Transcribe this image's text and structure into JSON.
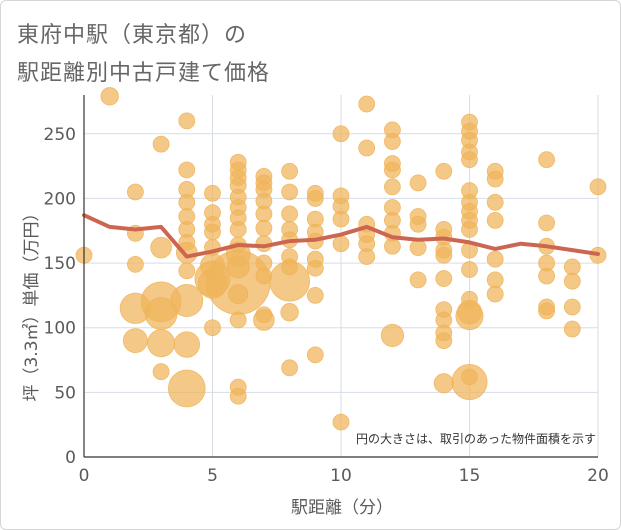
{
  "title_line1": "東府中駅（東京都）の",
  "title_line2": "駅距離別中古戸建て価格",
  "colors": {
    "bubble": "#f0b45a",
    "line": "#cd6650",
    "grid": "#d6dde5",
    "axis_text": "#5a5a5a"
  },
  "chart_data": {
    "type": "scatter",
    "xlabel": "駅距離（分）",
    "ylabel": "坪（3.3㎡）単価（万円）",
    "xlim": [
      0,
      20
    ],
    "ylim": [
      0,
      280
    ],
    "x_ticks": [
      "0",
      "5",
      "10",
      "15",
      "20"
    ],
    "y_ticks": [
      "0",
      "50",
      "100",
      "150",
      "200",
      "250"
    ],
    "grid": true,
    "annotation": "円の大きさは、取引のあった物件面積を示す",
    "bubbles": [
      {
        "x": 0,
        "y": 156,
        "s": 1
      },
      {
        "x": 1,
        "y": 279,
        "s": 1.1
      },
      {
        "x": 2,
        "y": 205,
        "s": 1
      },
      {
        "x": 2,
        "y": 173,
        "s": 1
      },
      {
        "x": 2,
        "y": 149,
        "s": 1
      },
      {
        "x": 2,
        "y": 115,
        "s": 1.9
      },
      {
        "x": 2,
        "y": 90,
        "s": 1.5
      },
      {
        "x": 3,
        "y": 242,
        "s": 1
      },
      {
        "x": 3,
        "y": 162,
        "s": 1.3
      },
      {
        "x": 3,
        "y": 120,
        "s": 2.5
      },
      {
        "x": 3,
        "y": 111,
        "s": 2
      },
      {
        "x": 3,
        "y": 88,
        "s": 1.7
      },
      {
        "x": 3,
        "y": 66,
        "s": 1
      },
      {
        "x": 4,
        "y": 260,
        "s": 1
      },
      {
        "x": 4,
        "y": 222,
        "s": 1
      },
      {
        "x": 4,
        "y": 207,
        "s": 1
      },
      {
        "x": 4,
        "y": 197,
        "s": 1
      },
      {
        "x": 4,
        "y": 186,
        "s": 1
      },
      {
        "x": 4,
        "y": 176,
        "s": 1
      },
      {
        "x": 4,
        "y": 166,
        "s": 1
      },
      {
        "x": 4,
        "y": 158,
        "s": 1.3
      },
      {
        "x": 4,
        "y": 144,
        "s": 1
      },
      {
        "x": 4,
        "y": 121,
        "s": 2
      },
      {
        "x": 4,
        "y": 87,
        "s": 1.6
      },
      {
        "x": 4,
        "y": 53,
        "s": 2.3
      },
      {
        "x": 5,
        "y": 204,
        "s": 1
      },
      {
        "x": 5,
        "y": 189,
        "s": 1
      },
      {
        "x": 5,
        "y": 180,
        "s": 1
      },
      {
        "x": 5,
        "y": 174,
        "s": 1
      },
      {
        "x": 5,
        "y": 162,
        "s": 1
      },
      {
        "x": 5,
        "y": 148,
        "s": 1.5
      },
      {
        "x": 5,
        "y": 138,
        "s": 2.2
      },
      {
        "x": 5,
        "y": 134,
        "s": 1.8
      },
      {
        "x": 5,
        "y": 100,
        "s": 1
      },
      {
        "x": 6,
        "y": 228,
        "s": 1
      },
      {
        "x": 6,
        "y": 222,
        "s": 1
      },
      {
        "x": 6,
        "y": 216,
        "s": 1
      },
      {
        "x": 6,
        "y": 210,
        "s": 1
      },
      {
        "x": 6,
        "y": 201,
        "s": 1
      },
      {
        "x": 6,
        "y": 193,
        "s": 1
      },
      {
        "x": 6,
        "y": 185,
        "s": 1
      },
      {
        "x": 6,
        "y": 176,
        "s": 1
      },
      {
        "x": 6,
        "y": 164,
        "s": 1
      },
      {
        "x": 6,
        "y": 157,
        "s": 1.5
      },
      {
        "x": 6,
        "y": 147,
        "s": 1.4
      },
      {
        "x": 6,
        "y": 135,
        "s": 4
      },
      {
        "x": 6,
        "y": 126,
        "s": 1.2
      },
      {
        "x": 6,
        "y": 106,
        "s": 1
      },
      {
        "x": 6,
        "y": 54,
        "s": 1
      },
      {
        "x": 6,
        "y": 47,
        "s": 1
      },
      {
        "x": 7,
        "y": 217,
        "s": 1
      },
      {
        "x": 7,
        "y": 212,
        "s": 1
      },
      {
        "x": 7,
        "y": 207,
        "s": 1
      },
      {
        "x": 7,
        "y": 198,
        "s": 1
      },
      {
        "x": 7,
        "y": 188,
        "s": 1
      },
      {
        "x": 7,
        "y": 177,
        "s": 1
      },
      {
        "x": 7,
        "y": 165,
        "s": 1
      },
      {
        "x": 7,
        "y": 150,
        "s": 1
      },
      {
        "x": 7,
        "y": 140,
        "s": 1
      },
      {
        "x": 7,
        "y": 110,
        "s": 1
      },
      {
        "x": 7,
        "y": 106,
        "s": 1.3
      },
      {
        "x": 8,
        "y": 221,
        "s": 1
      },
      {
        "x": 8,
        "y": 205,
        "s": 1
      },
      {
        "x": 8,
        "y": 188,
        "s": 1
      },
      {
        "x": 8,
        "y": 176,
        "s": 1
      },
      {
        "x": 8,
        "y": 168,
        "s": 1
      },
      {
        "x": 8,
        "y": 155,
        "s": 1
      },
      {
        "x": 8,
        "y": 147,
        "s": 1
      },
      {
        "x": 8,
        "y": 136,
        "s": 2.5
      },
      {
        "x": 8,
        "y": 112,
        "s": 1.1
      },
      {
        "x": 8,
        "y": 69,
        "s": 1
      },
      {
        "x": 9,
        "y": 204,
        "s": 1
      },
      {
        "x": 9,
        "y": 200,
        "s": 1
      },
      {
        "x": 9,
        "y": 184,
        "s": 1
      },
      {
        "x": 9,
        "y": 174,
        "s": 1
      },
      {
        "x": 9,
        "y": 167,
        "s": 1
      },
      {
        "x": 9,
        "y": 153,
        "s": 1
      },
      {
        "x": 9,
        "y": 146,
        "s": 1
      },
      {
        "x": 9,
        "y": 125,
        "s": 1
      },
      {
        "x": 9,
        "y": 79,
        "s": 1
      },
      {
        "x": 10,
        "y": 250,
        "s": 1
      },
      {
        "x": 10,
        "y": 202,
        "s": 1
      },
      {
        "x": 10,
        "y": 194,
        "s": 1
      },
      {
        "x": 10,
        "y": 184,
        "s": 1
      },
      {
        "x": 10,
        "y": 165,
        "s": 1
      },
      {
        "x": 10,
        "y": 27,
        "s": 1
      },
      {
        "x": 11,
        "y": 273,
        "s": 1
      },
      {
        "x": 11,
        "y": 239,
        "s": 1
      },
      {
        "x": 11,
        "y": 180,
        "s": 1
      },
      {
        "x": 11,
        "y": 172,
        "s": 1
      },
      {
        "x": 11,
        "y": 165,
        "s": 1
      },
      {
        "x": 11,
        "y": 155,
        "s": 1
      },
      {
        "x": 12,
        "y": 253,
        "s": 1
      },
      {
        "x": 12,
        "y": 244,
        "s": 1
      },
      {
        "x": 12,
        "y": 227,
        "s": 1
      },
      {
        "x": 12,
        "y": 222,
        "s": 1
      },
      {
        "x": 12,
        "y": 209,
        "s": 1
      },
      {
        "x": 12,
        "y": 193,
        "s": 1
      },
      {
        "x": 12,
        "y": 183,
        "s": 1
      },
      {
        "x": 12,
        "y": 173,
        "s": 1
      },
      {
        "x": 12,
        "y": 163,
        "s": 1
      },
      {
        "x": 12,
        "y": 94,
        "s": 1.4
      },
      {
        "x": 13,
        "y": 212,
        "s": 1
      },
      {
        "x": 13,
        "y": 186,
        "s": 1
      },
      {
        "x": 13,
        "y": 180,
        "s": 1
      },
      {
        "x": 13,
        "y": 162,
        "s": 1
      },
      {
        "x": 13,
        "y": 137,
        "s": 1
      },
      {
        "x": 14,
        "y": 221,
        "s": 1
      },
      {
        "x": 14,
        "y": 176,
        "s": 1
      },
      {
        "x": 14,
        "y": 170,
        "s": 1
      },
      {
        "x": 14,
        "y": 160,
        "s": 1
      },
      {
        "x": 14,
        "y": 156,
        "s": 1
      },
      {
        "x": 14,
        "y": 138,
        "s": 1
      },
      {
        "x": 14,
        "y": 114,
        "s": 1
      },
      {
        "x": 14,
        "y": 106,
        "s": 1
      },
      {
        "x": 14,
        "y": 96,
        "s": 1
      },
      {
        "x": 14,
        "y": 90,
        "s": 1
      },
      {
        "x": 14,
        "y": 57,
        "s": 1.2
      },
      {
        "x": 15,
        "y": 259,
        "s": 1
      },
      {
        "x": 15,
        "y": 252,
        "s": 1
      },
      {
        "x": 15,
        "y": 245,
        "s": 1
      },
      {
        "x": 15,
        "y": 236,
        "s": 1
      },
      {
        "x": 15,
        "y": 230,
        "s": 1
      },
      {
        "x": 15,
        "y": 206,
        "s": 1
      },
      {
        "x": 15,
        "y": 197,
        "s": 1
      },
      {
        "x": 15,
        "y": 190,
        "s": 1
      },
      {
        "x": 15,
        "y": 183,
        "s": 1
      },
      {
        "x": 15,
        "y": 176,
        "s": 1
      },
      {
        "x": 15,
        "y": 160,
        "s": 1
      },
      {
        "x": 15,
        "y": 145,
        "s": 1
      },
      {
        "x": 15,
        "y": 122,
        "s": 1
      },
      {
        "x": 15,
        "y": 112,
        "s": 1.5
      },
      {
        "x": 15,
        "y": 109,
        "s": 1.7
      },
      {
        "x": 15,
        "y": 62,
        "s": 1
      },
      {
        "x": 15,
        "y": 58,
        "s": 2.2
      },
      {
        "x": 16,
        "y": 221,
        "s": 1
      },
      {
        "x": 16,
        "y": 215,
        "s": 1
      },
      {
        "x": 16,
        "y": 197,
        "s": 1
      },
      {
        "x": 16,
        "y": 183,
        "s": 1
      },
      {
        "x": 16,
        "y": 153,
        "s": 1
      },
      {
        "x": 16,
        "y": 137,
        "s": 1
      },
      {
        "x": 16,
        "y": 126,
        "s": 1
      },
      {
        "x": 18,
        "y": 230,
        "s": 1
      },
      {
        "x": 18,
        "y": 181,
        "s": 1
      },
      {
        "x": 18,
        "y": 163,
        "s": 1
      },
      {
        "x": 18,
        "y": 150,
        "s": 1
      },
      {
        "x": 18,
        "y": 140,
        "s": 1
      },
      {
        "x": 18,
        "y": 116,
        "s": 1
      },
      {
        "x": 18,
        "y": 113,
        "s": 1
      },
      {
        "x": 19,
        "y": 147,
        "s": 1
      },
      {
        "x": 19,
        "y": 136,
        "s": 1
      },
      {
        "x": 19,
        "y": 116,
        "s": 1
      },
      {
        "x": 19,
        "y": 99,
        "s": 1
      },
      {
        "x": 20,
        "y": 209,
        "s": 1
      },
      {
        "x": 20,
        "y": 156,
        "s": 1
      }
    ],
    "trend": [
      {
        "x": 0,
        "y": 187
      },
      {
        "x": 1,
        "y": 178
      },
      {
        "x": 2,
        "y": 176
      },
      {
        "x": 3,
        "y": 178
      },
      {
        "x": 4,
        "y": 155
      },
      {
        "x": 5,
        "y": 159
      },
      {
        "x": 6,
        "y": 164
      },
      {
        "x": 7,
        "y": 163
      },
      {
        "x": 8,
        "y": 167
      },
      {
        "x": 9,
        "y": 168
      },
      {
        "x": 10,
        "y": 172
      },
      {
        "x": 11,
        "y": 178
      },
      {
        "x": 12,
        "y": 170
      },
      {
        "x": 13,
        "y": 168
      },
      {
        "x": 14,
        "y": 169
      },
      {
        "x": 15,
        "y": 166
      },
      {
        "x": 16,
        "y": 161
      },
      {
        "x": 17,
        "y": 165
      },
      {
        "x": 18,
        "y": 163
      },
      {
        "x": 19,
        "y": 160
      },
      {
        "x": 20,
        "y": 157
      }
    ]
  }
}
